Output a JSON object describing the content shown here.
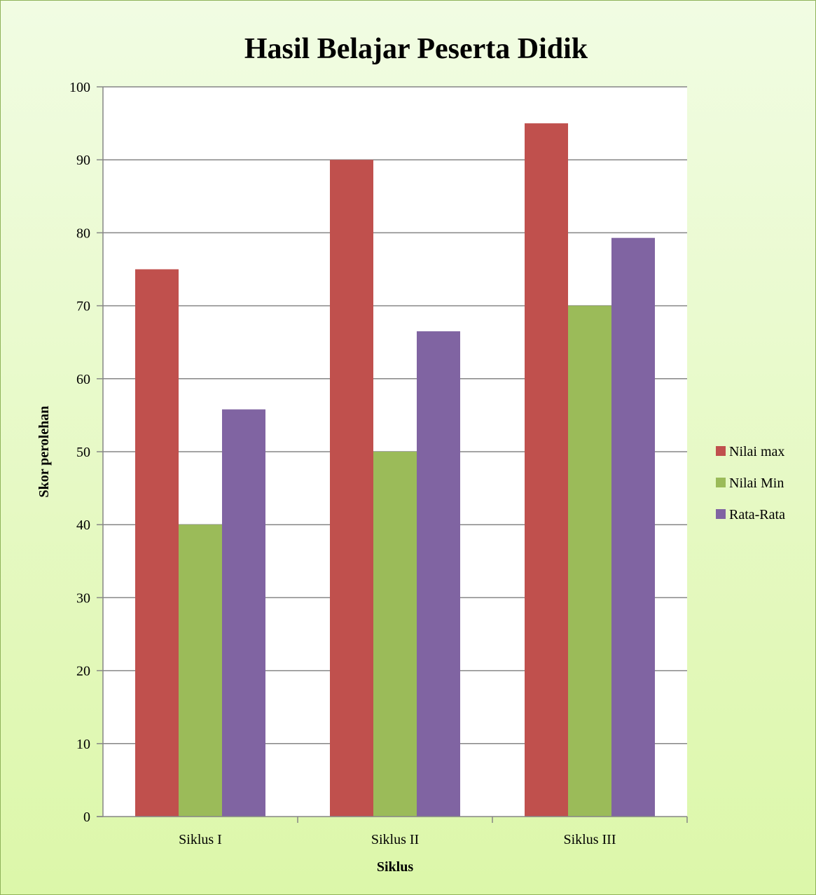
{
  "chart_data": {
    "type": "bar",
    "title": "Hasil Belajar Peserta Didik",
    "xlabel": "Siklus",
    "ylabel": "Skor perolehan",
    "categories": [
      "Siklus I",
      "Siklus II",
      "Siklus III"
    ],
    "ylim": [
      0,
      100
    ],
    "yticks": [
      0,
      10,
      20,
      30,
      40,
      50,
      60,
      70,
      80,
      90,
      100
    ],
    "grid": true,
    "legend_position": "right",
    "series": [
      {
        "name": "Nilai max",
        "color": "#c0504d",
        "values": [
          75,
          90,
          95
        ]
      },
      {
        "name": "Nilai Min",
        "color": "#9bbb59",
        "values": [
          40,
          50,
          70
        ]
      },
      {
        "name": "Rata-Rata",
        "color": "#8064a2",
        "values": [
          55.8,
          66.5,
          79.3
        ]
      }
    ]
  }
}
